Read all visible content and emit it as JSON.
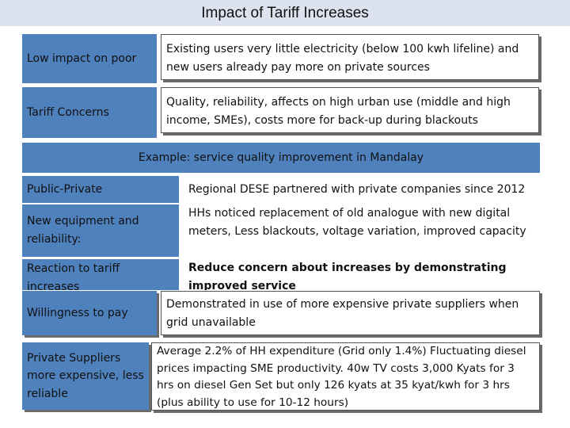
{
  "title": "Impact of Tariff Increases",
  "top_rows": [
    {
      "label": "Low impact on poor",
      "text": "Existing users very little electricity (below 100 kwh lifeline) and new users already pay more on private sources"
    },
    {
      "label": "Tariff Concerns",
      "text": "Quality, reliability, affects on high urban use (middle and high income, SMEs), costs more for back-up during blackouts"
    }
  ],
  "example": {
    "heading": "Example: service quality improvement in Mandalay",
    "rows": [
      {
        "label": "Public-Private",
        "text": "Regional DESE partnered with private companies since 2012"
      },
      {
        "label": "New equipment and reliability:",
        "text": "HHs noticed replacement of old analogue with new digital meters, Less blackouts, voltage variation, improved capacity"
      },
      {
        "label": "Reaction to tariff increases",
        "text": "Reduce concern about increases by demonstrating improved service"
      },
      {
        "label": "Willingness to pay",
        "text": "Demonstrated in use of more expensive private suppliers when grid unavailable"
      },
      {
        "label": "Private Suppliers more expensive, less reliable",
        "text": "Average 2.2% of HH expenditure (Grid only 1.4%) Fluctuating diesel prices impacting SME productivity. 40w TV costs 3,000 Kyats for 3 hrs on diesel Gen Set but only 126 kyats at 35 kyat/kwh for 3 hrs (plus ability to use for 10-12 hours)"
      }
    ]
  },
  "colors": {
    "accent": "#4f81bd",
    "title_bg": "#dde3ee"
  }
}
